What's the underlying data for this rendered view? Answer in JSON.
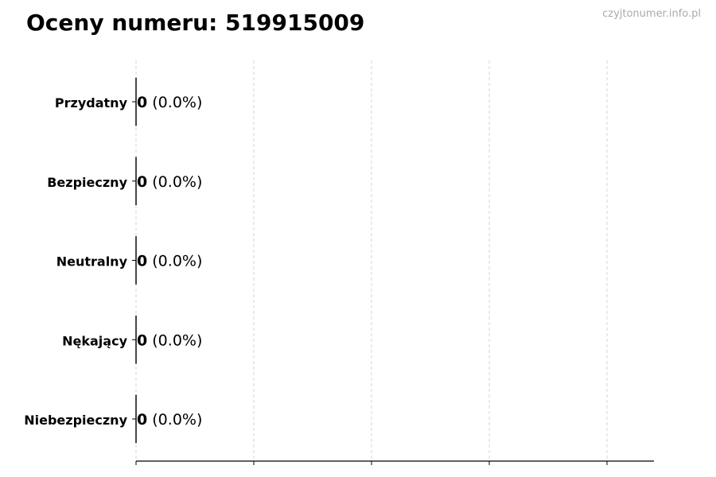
{
  "header": {
    "title": "Oceny numeru: 519915009",
    "watermark": "czyjtonumer.info.pl"
  },
  "chart_data": {
    "type": "bar",
    "orientation": "horizontal",
    "title": "Oceny numeru: 519915009",
    "categories": [
      "Przydatny",
      "Bezpieczny",
      "Neutralny",
      "Nękający",
      "Niebezpieczny"
    ],
    "values": [
      0,
      0,
      0,
      0,
      0
    ],
    "labels": [
      {
        "count": "0",
        "pct": "(0.0%)"
      },
      {
        "count": "0",
        "pct": "(0.0%)"
      },
      {
        "count": "0",
        "pct": "(0.0%)"
      },
      {
        "count": "0",
        "pct": "(0.0%)"
      },
      {
        "count": "0",
        "pct": "(0.0%)"
      }
    ],
    "xlim": [
      0,
      4.4
    ],
    "xticks_shown": false,
    "grid": "x-dashed",
    "colors": {
      "bar_edge": "#000000",
      "grid": "#cccccc"
    }
  }
}
